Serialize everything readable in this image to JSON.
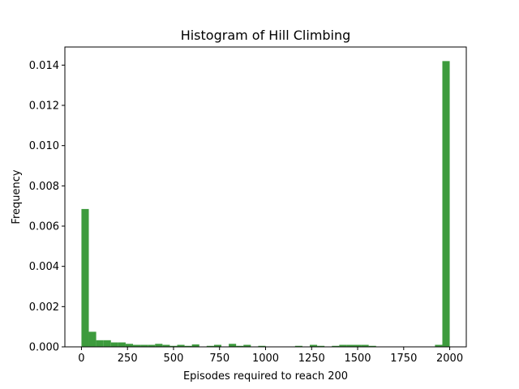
{
  "chart_data": {
    "type": "bar",
    "title": "Histogram of Hill Climbing",
    "xlabel": "Episodes required to reach 200",
    "ylabel": "Frequency",
    "xlim": [
      -90,
      2090
    ],
    "ylim": [
      0,
      0.0149
    ],
    "x_ticks": [
      0,
      250,
      500,
      750,
      1000,
      1250,
      1500,
      1750,
      2000
    ],
    "y_ticks": [
      0.0,
      0.002,
      0.004,
      0.006,
      0.008,
      0.01,
      0.012,
      0.014
    ],
    "y_tick_labels": [
      "0.000",
      "0.002",
      "0.004",
      "0.006",
      "0.008",
      "0.010",
      "0.012",
      "0.014"
    ],
    "bar_color": "#3d9b3d",
    "bin_edges": [
      0,
      40,
      80,
      120,
      160,
      200,
      240,
      280,
      320,
      360,
      400,
      440,
      480,
      520,
      560,
      600,
      640,
      680,
      720,
      760,
      800,
      840,
      880,
      920,
      960,
      1000,
      1040,
      1080,
      1120,
      1160,
      1200,
      1240,
      1280,
      1320,
      1360,
      1400,
      1440,
      1480,
      1520,
      1560,
      1600,
      1640,
      1680,
      1720,
      1760,
      1800,
      1840,
      1880,
      1920,
      1960,
      2000
    ],
    "values": [
      0.00685,
      0.00075,
      0.00033,
      0.00033,
      0.00022,
      0.00022,
      0.00015,
      0.0001,
      0.0001,
      0.0001,
      0.00015,
      0.0001,
      5e-05,
      0.0001,
      5e-05,
      0.00012,
      0.0,
      5e-05,
      0.0001,
      0.0,
      0.00015,
      5e-05,
      0.0001,
      0.0,
      5e-05,
      0.0,
      0.0,
      0.0,
      0.0,
      5e-05,
      0.0,
      0.0001,
      5e-05,
      0.0,
      5e-05,
      0.0001,
      0.0001,
      0.0001,
      0.0001,
      5e-05,
      0.0,
      0.0,
      0.0,
      0.0,
      0.0,
      0.0,
      0.0,
      0.0,
      0.0001,
      0.0142
    ]
  }
}
